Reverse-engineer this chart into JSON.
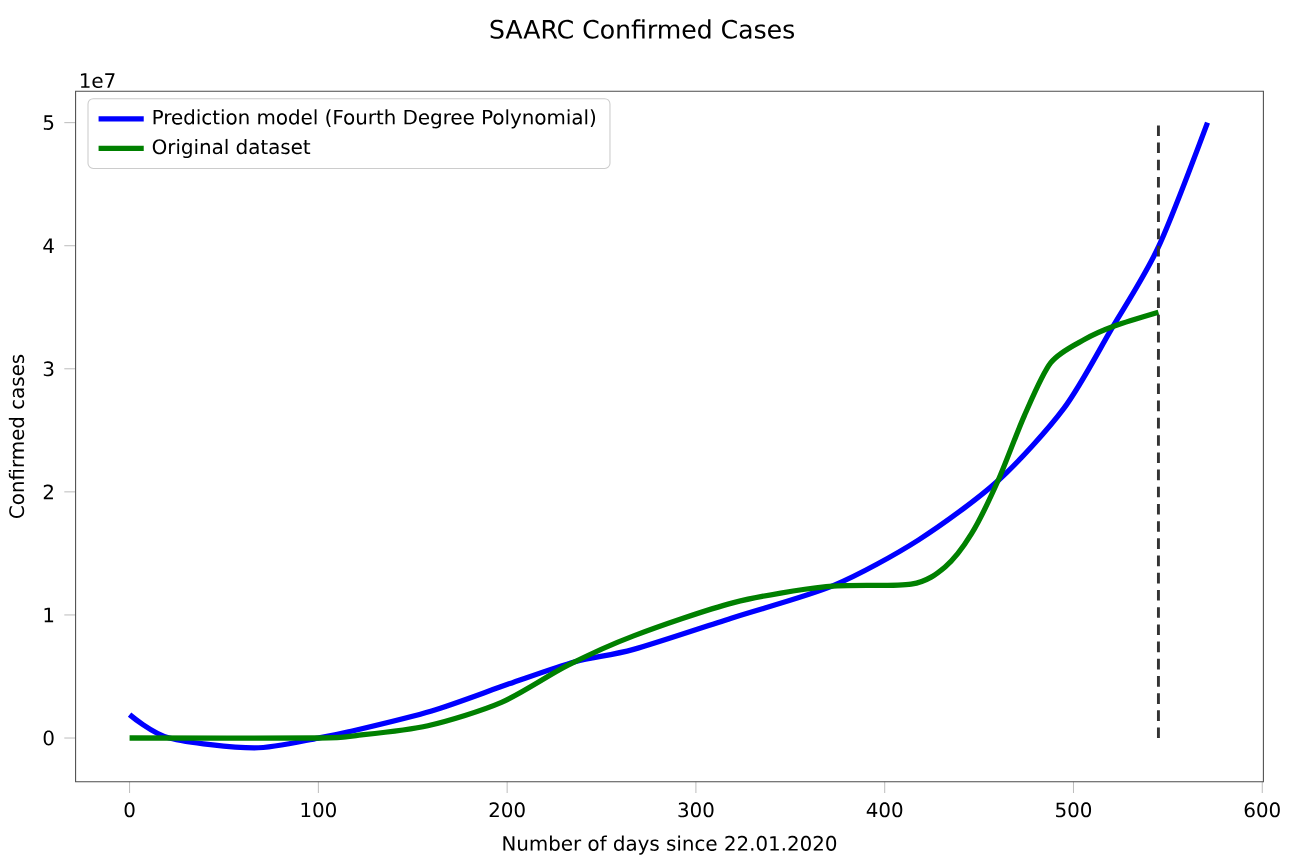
{
  "chart_data": {
    "type": "line",
    "title": "SAARC Confirmed Cases",
    "xlabel": "Number of days since 22.01.2020",
    "ylabel": "Confirmed cases",
    "annotations": [
      "1e7"
    ],
    "xlim": [
      -28.6,
      600.6
    ],
    "ylim": [
      -0.355,
      5.255
    ],
    "xticks": [
      0,
      100,
      200,
      300,
      400,
      500,
      600
    ],
    "yticks": [
      0,
      1,
      2,
      3,
      4,
      5
    ],
    "grid": false,
    "legend": "top left",
    "series": [
      {
        "name": "Prediction model (Fourth Degree Polynomial)",
        "color": "#0000ff",
        "x": [
          0,
          21,
          66,
          100,
          116,
          160,
          201,
          236,
          267,
          320,
          373,
          418,
          460,
          495,
          520,
          545,
          571
        ],
        "values": [
          0.19,
          0,
          -0.08,
          0,
          0.05,
          0.22,
          0.44,
          0.62,
          0.72,
          0.98,
          1.24,
          1.61,
          2.09,
          2.68,
          3.32,
          3.99,
          5.0
        ]
      },
      {
        "name": "Original dataset",
        "color": "#008000",
        "x": [
          0,
          100,
          120,
          158,
          197,
          232,
          267,
          320,
          369,
          414,
          432,
          446,
          460,
          474,
          488,
          506,
          522,
          545
        ],
        "values": [
          0,
          0,
          0.02,
          0.1,
          0.29,
          0.59,
          0.83,
          1.1,
          1.23,
          1.25,
          1.39,
          1.66,
          2.09,
          2.62,
          3.05,
          3.24,
          3.35,
          3.46
        ]
      },
      {
        "type": "line",
        "color": "#333333",
        "line_style": "dashed",
        "x": [
          545,
          545
        ],
        "values": [
          0,
          5.0
        ]
      }
    ]
  }
}
